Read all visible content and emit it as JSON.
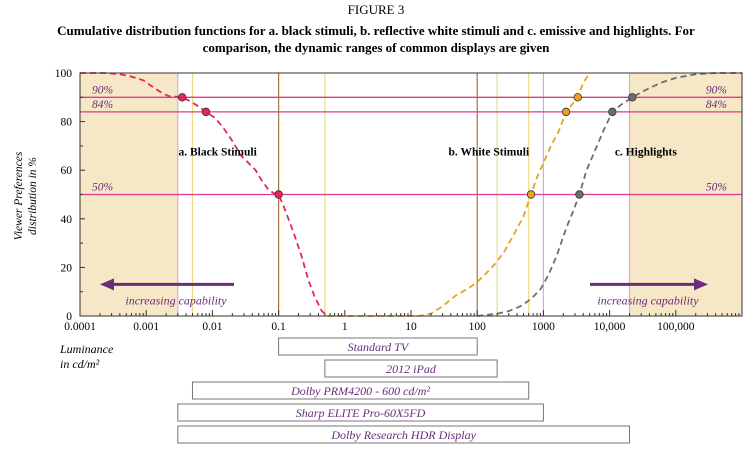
{
  "figure": {
    "label": "FIGURE 3",
    "title_line1": "Cumulative distribution functions for a. black stimuli, b. reflective white stimuli and c. emissive and highlights. For",
    "title_line2": "comparison, the dynamic ranges of common displays are given"
  },
  "chart_data": {
    "type": "line",
    "title": "Cumulative distribution functions for a. black stimuli, b. reflective white stimuli and c. emissive and highlights. For comparison, the dynamic ranges of common displays are given",
    "ylabel_line1": "Viewer Preferences",
    "ylabel_line2": "distribution in %",
    "xlabel_line1": "Luminance",
    "xlabel_line2": "in cd/m²",
    "x_scale": "log",
    "xlim": [
      0.0001,
      1000000
    ],
    "ylim": [
      0,
      100
    ],
    "x_ticks": [
      {
        "value": 0.0001,
        "label": "0.0001"
      },
      {
        "value": 0.001,
        "label": "0.001"
      },
      {
        "value": 0.01,
        "label": "0.01"
      },
      {
        "value": 0.1,
        "label": "0.1"
      },
      {
        "value": 1,
        "label": "1"
      },
      {
        "value": 10,
        "label": "10"
      },
      {
        "value": 100,
        "label": "100"
      },
      {
        "value": 1000,
        "label": "1000"
      },
      {
        "value": 10000,
        "label": "10,000"
      },
      {
        "value": 100000,
        "label": "100,000"
      }
    ],
    "y_ticks": [
      {
        "value": 0,
        "label": "0"
      },
      {
        "value": 20,
        "label": "20"
      },
      {
        "value": 40,
        "label": "40"
      },
      {
        "value": 60,
        "label": "60"
      },
      {
        "value": 80,
        "label": "80"
      },
      {
        "value": 100,
        "label": "100"
      }
    ],
    "reference_lines": [
      {
        "y": 90,
        "label": "90%"
      },
      {
        "y": 84,
        "label": "84%"
      },
      {
        "y": 50,
        "label": "50%"
      }
    ],
    "series": [
      {
        "name": "a. Black Stimuli",
        "color": "#e6245e",
        "x": [
          0.0001,
          0.00025,
          0.0004,
          0.0006,
          0.0009,
          0.0013,
          0.0018,
          0.0022,
          0.0028,
          0.0035,
          0.0045,
          0.006,
          0.008,
          0.011,
          0.015,
          0.02,
          0.027,
          0.035,
          0.045,
          0.055,
          0.07,
          0.085,
          0.1,
          0.12,
          0.15,
          0.18,
          0.22,
          0.28,
          0.35,
          0.45,
          0.55
        ],
        "y": [
          100,
          100,
          99.5,
          98.5,
          97,
          94,
          91.5,
          90.5,
          90.3,
          90,
          88.5,
          86.5,
          84,
          81.5,
          77,
          72,
          66,
          63,
          60,
          56,
          52,
          50.5,
          50,
          45,
          38,
          32,
          25,
          15,
          8,
          2,
          0
        ]
      },
      {
        "name": "b. White Stimuli",
        "color": "#e8a21c",
        "x": [
          0.55,
          1,
          3,
          8,
          13,
          20,
          30,
          45,
          60,
          80,
          100,
          130,
          180,
          250,
          350,
          500,
          650,
          800,
          1000,
          1300,
          1700,
          2200,
          2700,
          3300,
          4000,
          5000
        ],
        "y": [
          0,
          0,
          0,
          0,
          0,
          1,
          4,
          8,
          10,
          12,
          14,
          17,
          21,
          26,
          33,
          41,
          50,
          57,
          63,
          70,
          76,
          84,
          87,
          90,
          96,
          100
        ]
      },
      {
        "name": "c. Highlights",
        "color": "#6e6e6e",
        "x": [
          100,
          200,
          300,
          450,
          650,
          900,
          1200,
          1600,
          2200,
          2800,
          3500,
          4500,
          6000,
          8000,
          11000,
          15000,
          22000,
          35000,
          60000,
          100000,
          200000,
          400000,
          1000000
        ],
        "y": [
          0,
          1,
          2,
          4,
          7,
          11,
          17,
          25,
          36,
          43,
          50,
          60,
          68,
          76,
          84,
          87,
          90,
          93,
          96,
          98,
          99.5,
          100,
          100
        ]
      }
    ],
    "markers": [
      {
        "series": 0,
        "x": 0.0035,
        "y": 90
      },
      {
        "series": 0,
        "x": 0.008,
        "y": 84
      },
      {
        "series": 0,
        "x": 0.1,
        "y": 50
      },
      {
        "series": 1,
        "x": 650,
        "y": 50
      },
      {
        "series": 1,
        "x": 2200,
        "y": 84
      },
      {
        "series": 1,
        "x": 3300,
        "y": 90
      },
      {
        "series": 2,
        "x": 3500,
        "y": 50
      },
      {
        "series": 2,
        "x": 11000,
        "y": 84
      },
      {
        "series": 2,
        "x": 22000,
        "y": 90
      }
    ],
    "vertical_lines": [
      {
        "x": 0.003,
        "color": "#d6a8e6"
      },
      {
        "x": 0.005,
        "color": "#eddc86"
      },
      {
        "x": 0.1,
        "color": "#a87540"
      },
      {
        "x": 0.5,
        "color": "#eddc86"
      },
      {
        "x": 100,
        "color": "#a87540"
      },
      {
        "x": 200,
        "color": "#eddc86"
      },
      {
        "x": 600,
        "color": "#eddc86"
      },
      {
        "x": 1000,
        "color": "#d6a8e6"
      },
      {
        "x": 20000,
        "color": "#d6a8e6"
      }
    ],
    "shaded_regions": [
      {
        "x0": 0.0001,
        "x1": 0.003,
        "color": "#f6e7c6"
      },
      {
        "x0": 20000,
        "x1": 1000000,
        "color": "#f6e7c6"
      }
    ],
    "region_labels": [
      {
        "text": "a. Black Stimuli",
        "x": 0.012,
        "y": 66
      },
      {
        "text": "b. White Stimuli",
        "x": 150,
        "y": 66
      },
      {
        "text": "c. Highlights",
        "x": 12000,
        "y": 66
      }
    ],
    "capability_arrows": [
      {
        "text": "increasing capability",
        "direction": "left",
        "color": "#6b2d7a"
      },
      {
        "text": "increasing capability",
        "direction": "right",
        "color": "#6b2d7a"
      }
    ],
    "displays": [
      {
        "name": "Standard TV",
        "min": 0.1,
        "max": 100
      },
      {
        "name": "2012 iPad",
        "min": 0.5,
        "max": 200
      },
      {
        "name": "Dolby PRM4200 - 600 cd/m²",
        "min": 0.005,
        "max": 600
      },
      {
        "name": "Sharp ELITE Pro-60X5FD",
        "min": 0.003,
        "max": 1000
      },
      {
        "name": "Dolby Research HDR Display",
        "min": 0.003,
        "max": 20000
      }
    ]
  }
}
